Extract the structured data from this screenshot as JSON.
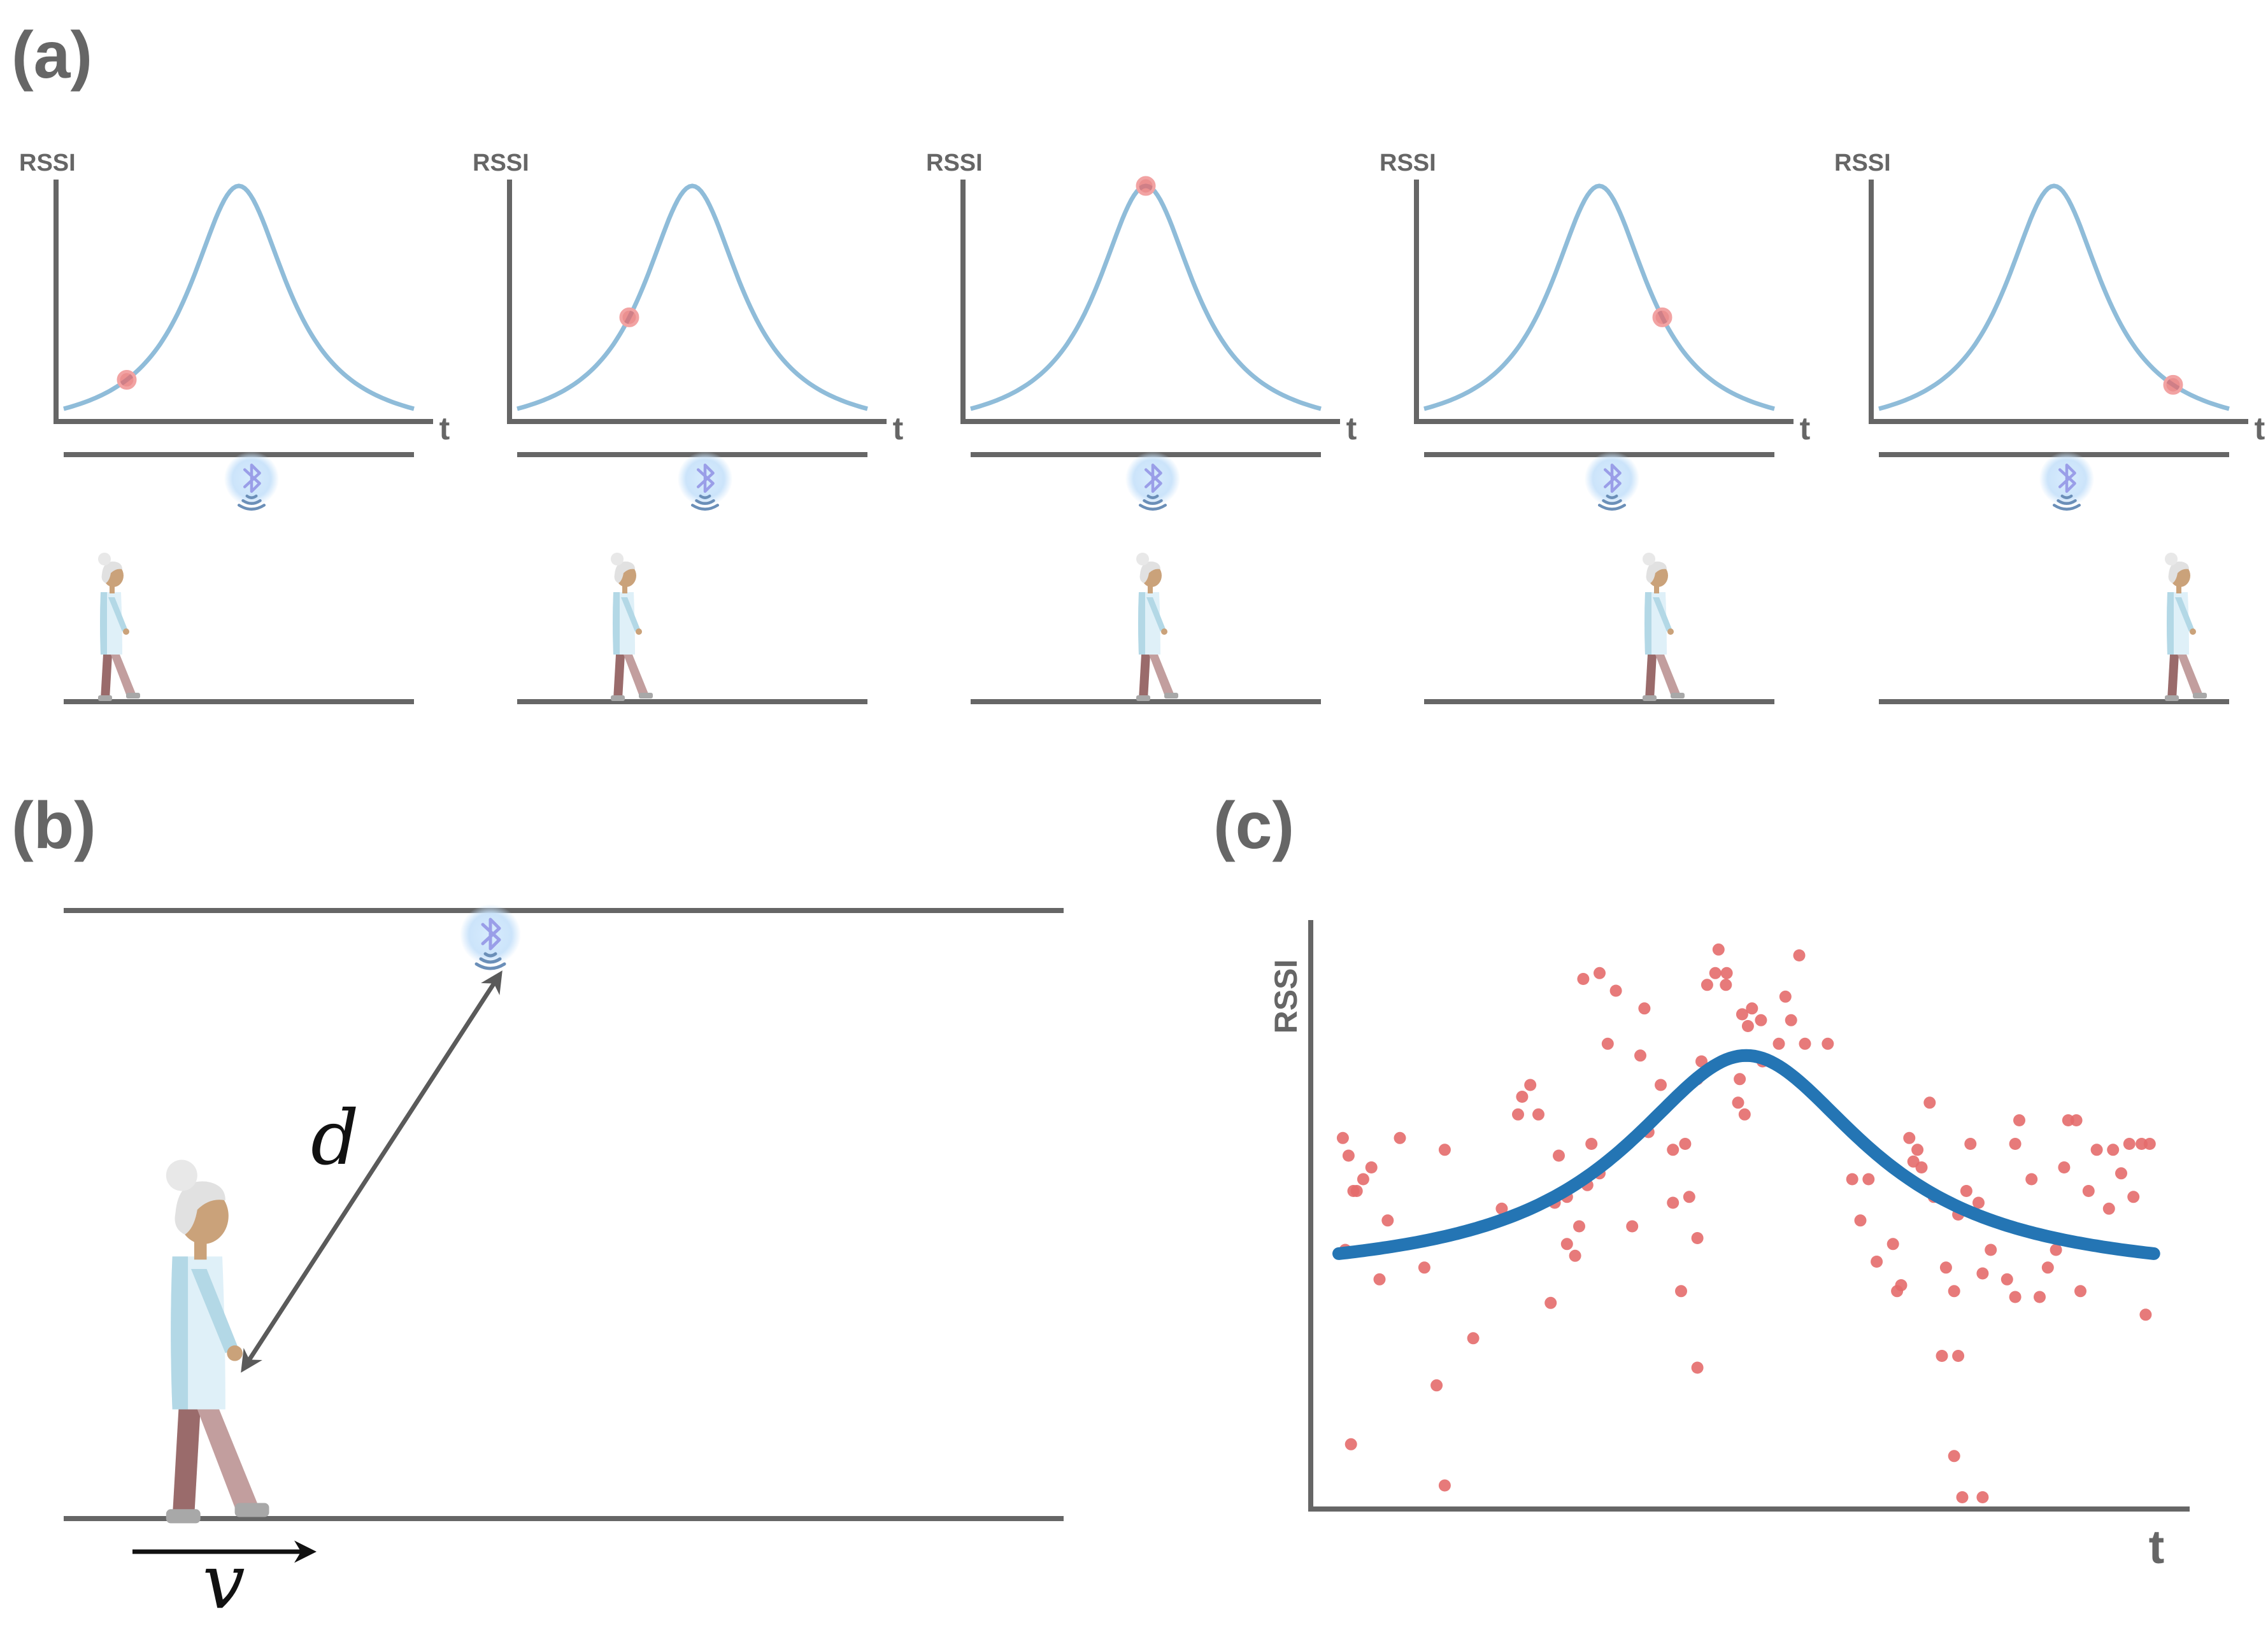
{
  "panels": {
    "a": {
      "label": "(a)"
    },
    "b": {
      "label": "(b)"
    },
    "c": {
      "label": "(c)"
    }
  },
  "axis_labels": {
    "y": "RSSI",
    "x": "t"
  },
  "symbols": {
    "distance": "d",
    "velocity": "v"
  },
  "colors": {
    "axis": "#666666",
    "curve_light": "#8fbcd9",
    "curve_fit": "#2475b4",
    "marker": "#e46b6b",
    "beacon_glow": "#cfe6fb",
    "bluetooth": "#9a9ee8",
    "signal_waves": "#6b8fb8",
    "person_skin": "#caa27a",
    "person_hair": "#e1e1e1",
    "person_shirt": "#dff0f8",
    "person_shirt_shade": "#b3d8e6",
    "person_leg_back": "#9a6b6b",
    "person_leg_front": "#c29e9e",
    "person_shoe": "#a8a8a8"
  },
  "icons": [
    "bluetooth-beacon-icon",
    "walking-person-icon",
    "velocity-arrow-icon"
  ],
  "chart_data": [
    {
      "panel": "a",
      "type": "line",
      "description_frames": 5,
      "ylabel": "RSSI",
      "xlabel": "t",
      "curve_shape": "lorentzian peak",
      "marker_t_fraction": [
        0.18,
        0.32,
        0.5,
        0.68,
        0.84
      ]
    },
    {
      "panel": "c",
      "type": "scatter",
      "ylabel": "RSSI",
      "xlabel": "t",
      "xlim": [
        0,
        1
      ],
      "ylim": [
        0,
        1
      ],
      "fit": {
        "type": "lorentzian",
        "peak_x": 0.5,
        "peak_y": 0.77,
        "baseline": 0.34,
        "width": 0.18
      },
      "points": [
        [
          0.005,
          0.63
        ],
        [
          0.012,
          0.6
        ],
        [
          0.018,
          0.54
        ],
        [
          0.022,
          0.54
        ],
        [
          0.03,
          0.56
        ],
        [
          0.04,
          0.58
        ],
        [
          0.06,
          0.49
        ],
        [
          0.075,
          0.63
        ],
        [
          0.05,
          0.39
        ],
        [
          0.008,
          0.44
        ],
        [
          0.015,
          0.11
        ],
        [
          0.105,
          0.41
        ],
        [
          0.13,
          0.61
        ],
        [
          0.12,
          0.21
        ],
        [
          0.165,
          0.29
        ],
        [
          0.2,
          0.51
        ],
        [
          0.22,
          0.67
        ],
        [
          0.235,
          0.72
        ],
        [
          0.225,
          0.7
        ],
        [
          0.245,
          0.67
        ],
        [
          0.26,
          0.35
        ],
        [
          0.27,
          0.6
        ],
        [
          0.28,
          0.53
        ],
        [
          0.28,
          0.45
        ],
        [
          0.295,
          0.48
        ],
        [
          0.29,
          0.43
        ],
        [
          0.305,
          0.55
        ],
        [
          0.31,
          0.62
        ],
        [
          0.32,
          0.57
        ],
        [
          0.265,
          0.52
        ],
        [
          0.3,
          0.9
        ],
        [
          0.32,
          0.91
        ],
        [
          0.34,
          0.88
        ],
        [
          0.33,
          0.79
        ],
        [
          0.375,
          0.85
        ],
        [
          0.38,
          0.64
        ],
        [
          0.37,
          0.77
        ],
        [
          0.36,
          0.48
        ],
        [
          0.395,
          0.72
        ],
        [
          0.41,
          0.61
        ],
        [
          0.425,
          0.62
        ],
        [
          0.43,
          0.53
        ],
        [
          0.44,
          0.73
        ],
        [
          0.445,
          0.76
        ],
        [
          0.41,
          0.52
        ],
        [
          0.44,
          0.46
        ],
        [
          0.42,
          0.37
        ],
        [
          0.44,
          0.24
        ],
        [
          0.452,
          0.89
        ],
        [
          0.462,
          0.91
        ],
        [
          0.475,
          0.89
        ],
        [
          0.466,
          0.95
        ],
        [
          0.476,
          0.91
        ],
        [
          0.495,
          0.84
        ],
        [
          0.502,
          0.82
        ],
        [
          0.518,
          0.83
        ],
        [
          0.507,
          0.85
        ],
        [
          0.49,
          0.69
        ],
        [
          0.492,
          0.73
        ],
        [
          0.498,
          0.67
        ],
        [
          0.52,
          0.76
        ],
        [
          0.54,
          0.79
        ],
        [
          0.548,
          0.87
        ],
        [
          0.555,
          0.83
        ],
        [
          0.572,
          0.79
        ],
        [
          0.565,
          0.94
        ],
        [
          0.6,
          0.79
        ],
        [
          0.63,
          0.56
        ],
        [
          0.64,
          0.49
        ],
        [
          0.65,
          0.56
        ],
        [
          0.66,
          0.42
        ],
        [
          0.685,
          0.37
        ],
        [
          0.68,
          0.45
        ],
        [
          0.7,
          0.63
        ],
        [
          0.69,
          0.38
        ],
        [
          0.715,
          0.58
        ],
        [
          0.71,
          0.61
        ],
        [
          0.705,
          0.59
        ],
        [
          0.725,
          0.69
        ],
        [
          0.73,
          0.53
        ],
        [
          0.735,
          0.53
        ],
        [
          0.74,
          0.26
        ],
        [
          0.76,
          0.26
        ],
        [
          0.745,
          0.41
        ],
        [
          0.755,
          0.37
        ],
        [
          0.76,
          0.5
        ],
        [
          0.77,
          0.54
        ],
        [
          0.775,
          0.62
        ],
        [
          0.785,
          0.52
        ],
        [
          0.79,
          0.4
        ],
        [
          0.8,
          0.44
        ],
        [
          0.82,
          0.39
        ],
        [
          0.83,
          0.62
        ],
        [
          0.83,
          0.36
        ],
        [
          0.835,
          0.66
        ],
        [
          0.85,
          0.56
        ],
        [
          0.86,
          0.36
        ],
        [
          0.87,
          0.41
        ],
        [
          0.88,
          0.44
        ],
        [
          0.89,
          0.58
        ],
        [
          0.895,
          0.66
        ],
        [
          0.905,
          0.66
        ],
        [
          0.91,
          0.37
        ],
        [
          0.92,
          0.54
        ],
        [
          0.93,
          0.61
        ],
        [
          0.945,
          0.51
        ],
        [
          0.95,
          0.61
        ],
        [
          0.96,
          0.57
        ],
        [
          0.97,
          0.62
        ],
        [
          0.975,
          0.53
        ],
        [
          0.985,
          0.62
        ],
        [
          0.99,
          0.33
        ],
        [
          0.995,
          0.62
        ],
        [
          0.755,
          0.09
        ],
        [
          0.765,
          0.02
        ],
        [
          0.79,
          0.02
        ],
        [
          0.13,
          0.04
        ]
      ]
    }
  ]
}
